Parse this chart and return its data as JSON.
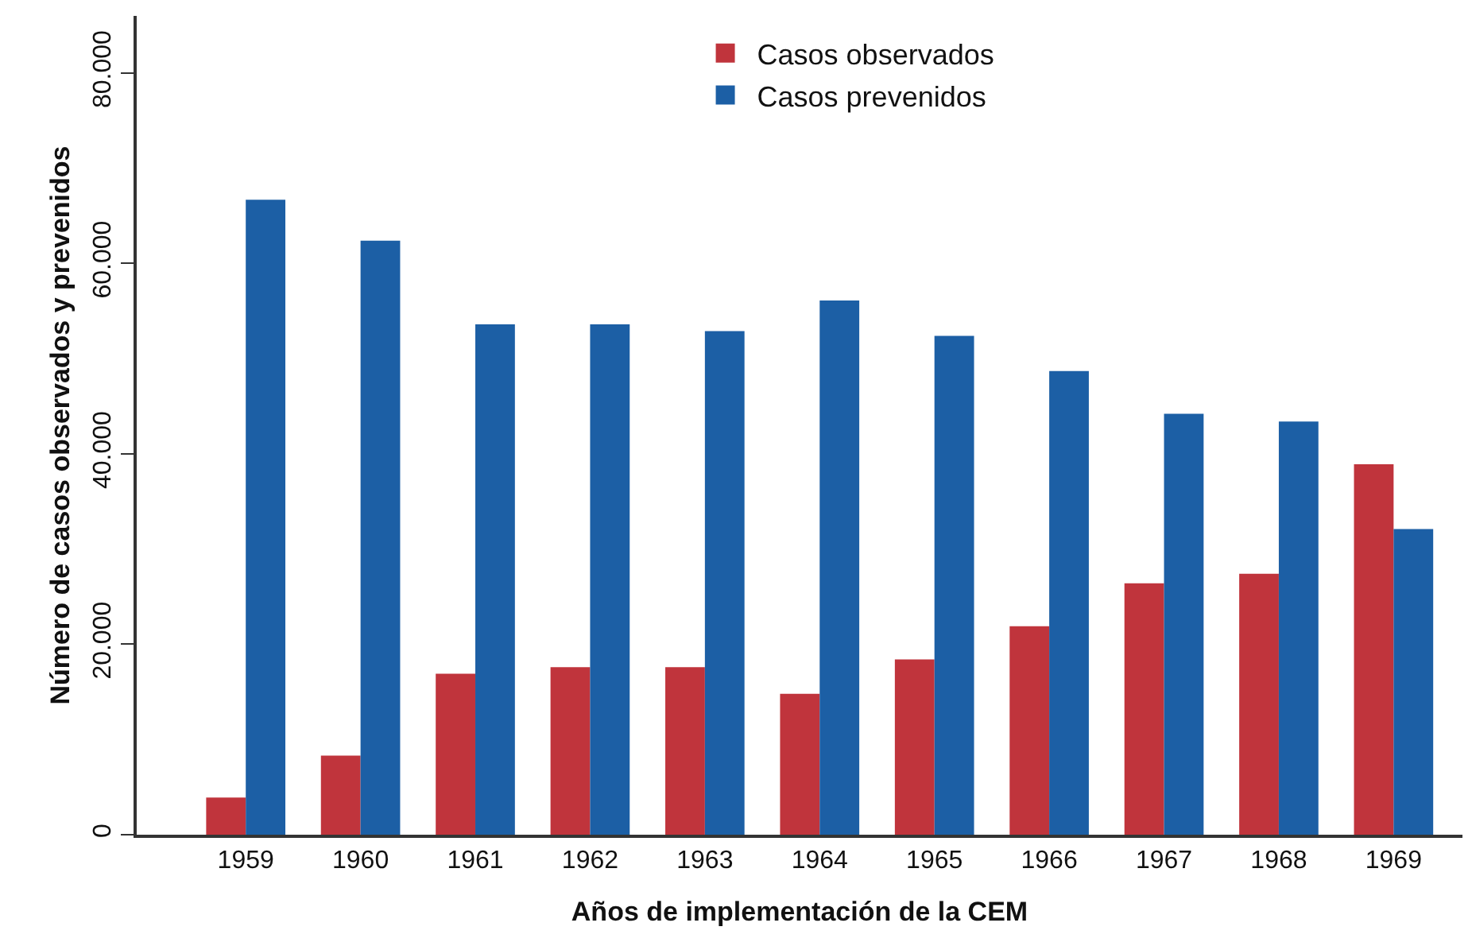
{
  "chart_data": {
    "type": "bar",
    "xlabel": "Años de implementación de la CEM",
    "ylabel": "Número de casos observados y prevenidos",
    "categories": [
      "1959",
      "1960",
      "1961",
      "1962",
      "1963",
      "1964",
      "1965",
      "1966",
      "1967",
      "1968",
      "1969"
    ],
    "series": [
      {
        "name": "Casos observados",
        "color": "#c0343c",
        "values": [
          3900,
          8300,
          16900,
          17600,
          17600,
          14800,
          18400,
          21900,
          26400,
          27400,
          38900
        ]
      },
      {
        "name": "Casos prevenidos",
        "color": "#1c5fa5",
        "values": [
          66700,
          62400,
          53600,
          53600,
          52900,
          56100,
          52400,
          48700,
          44200,
          43400,
          32100
        ]
      }
    ],
    "ylim": [
      0,
      86000
    ],
    "yticks": [
      {
        "value": 0,
        "label": "0"
      },
      {
        "value": 20000,
        "label": "20.000"
      },
      {
        "value": 40000,
        "label": "40.000"
      },
      {
        "value": 60000,
        "label": "60.000"
      },
      {
        "value": 80000,
        "label": "80.000"
      }
    ],
    "legend": "top"
  }
}
